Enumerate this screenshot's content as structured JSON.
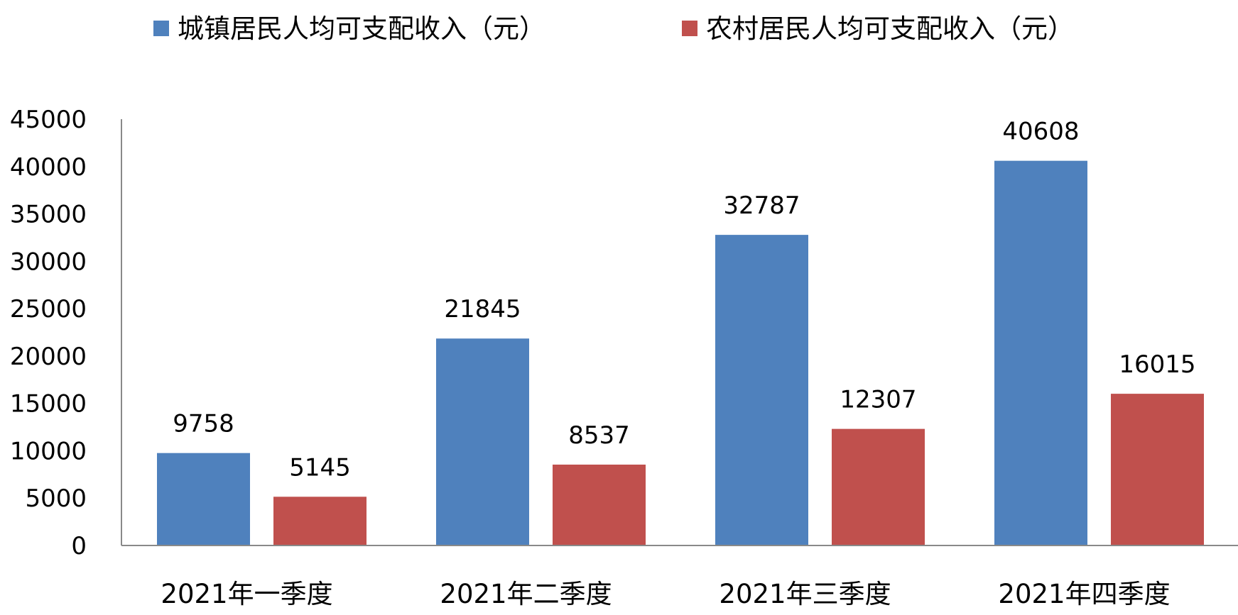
{
  "chart_data": {
    "type": "bar",
    "title": "",
    "xlabel": "",
    "ylabel": "",
    "categories": [
      "2021年一季度",
      "2021年二季度",
      "2021年三季度",
      "2021年四季度"
    ],
    "series": [
      {
        "name": "城镇居民人均可支配收入（元）",
        "color": "#4F81BD",
        "values": [
          9758,
          21845,
          32787,
          40608
        ]
      },
      {
        "name": "农村居民人均可支配收入（元）",
        "color": "#C0504D",
        "values": [
          5145,
          8537,
          12307,
          16015
        ]
      }
    ],
    "ylim": [
      0,
      45000
    ],
    "yticks": [
      0,
      5000,
      10000,
      15000,
      20000,
      25000,
      30000,
      35000,
      40000,
      45000
    ],
    "grid": false,
    "legend_position": "top",
    "data_labels": true,
    "axis_color": "#898989"
  }
}
